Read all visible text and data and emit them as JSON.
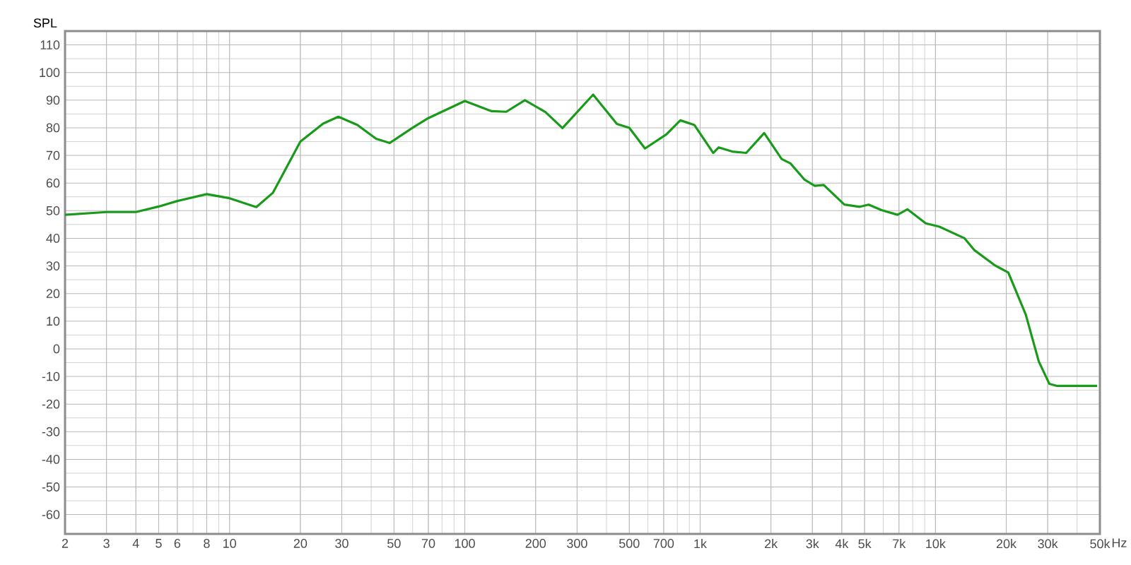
{
  "chart_data": {
    "type": "line",
    "ylabel": "SPL",
    "log": "x",
    "grid": true,
    "xlim": [
      2,
      50000
    ],
    "ylim": [
      -67,
      115
    ],
    "xticks": [
      2,
      3,
      4,
      5,
      6,
      8,
      10,
      20,
      30,
      50,
      70,
      100,
      200,
      300,
      500,
      700,
      {
        "value": 1000,
        "label": "1k"
      },
      {
        "value": 2000,
        "label": "2k"
      },
      {
        "value": 3000,
        "label": "3k"
      },
      {
        "value": 4000,
        "label": "4k"
      },
      {
        "value": 5000,
        "label": "5k"
      },
      {
        "value": 7000,
        "label": "7k"
      },
      {
        "value": 10000,
        "label": "10k"
      },
      {
        "value": 20000,
        "label": "20k"
      },
      {
        "value": 30000,
        "label": "30k"
      },
      {
        "value": 50000,
        "label": "50k"
      }
    ],
    "xlabel": "Hz",
    "yticks": [
      -60,
      -50,
      -40,
      -30,
      -20,
      -10,
      0,
      10,
      20,
      30,
      40,
      50,
      60,
      70,
      80,
      90,
      100,
      110
    ],
    "series": [
      {
        "color": "#1a9a1a",
        "x": [
          2,
          3,
          4,
          5,
          6,
          8,
          10,
          13,
          15.3,
          20,
          25,
          29,
          35,
          42,
          48,
          60,
          70,
          100,
          130,
          150,
          180,
          220,
          260,
          351,
          443,
          500,
          583,
          718,
          824,
          946,
          1137,
          1200,
          1368,
          1570,
          1872,
          2220,
          2420,
          2780,
          3070,
          3350,
          4100,
          4770,
          5200,
          5900,
          6900,
          7600,
          9100,
          10400,
          13300,
          14600,
          17900,
          20400,
          24200,
          27500,
          30500,
          32700,
          48700
        ],
        "values": [
          48.5,
          49.5,
          49.5,
          51.5,
          53.5,
          56,
          54.5,
          51.3,
          56.5,
          75,
          81.5,
          84,
          81,
          76,
          74.5,
          80,
          83.5,
          89.7,
          86,
          85.8,
          90,
          85.7,
          79.9,
          92,
          81.4,
          80,
          72.5,
          77.6,
          82.7,
          81,
          70.9,
          72.9,
          71.4,
          70.9,
          78.1,
          68.7,
          67.1,
          61.2,
          59,
          59.3,
          52.2,
          51.4,
          52.2,
          50.2,
          48.5,
          50.5,
          45.4,
          44.2,
          40,
          35.8,
          30.2,
          27.6,
          12.4,
          -4.6,
          -12.7,
          -13.4,
          -13.4
        ]
      }
    ]
  }
}
